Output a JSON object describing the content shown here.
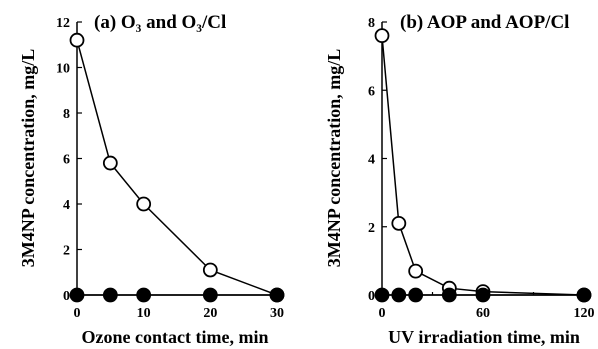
{
  "chart_data": [
    {
      "type": "line",
      "title": "(a) O₃ and O₃/Cl",
      "xlabel": "Ozone contact time, min",
      "ylabel": "3M4NP concentration, mg/L",
      "xlim": [
        0,
        30
      ],
      "ylim": [
        0,
        12
      ],
      "xticks": [
        0,
        10,
        20,
        30
      ],
      "yticks": [
        0,
        2,
        4,
        6,
        8,
        10,
        12
      ],
      "grid": false,
      "legend": "none",
      "series": [
        {
          "marker": "open-circle",
          "color": "#000000",
          "x": [
            0,
            5,
            10,
            20,
            30
          ],
          "y": [
            11.2,
            5.8,
            4.0,
            1.1,
            0.0
          ]
        },
        {
          "marker": "filled-circle",
          "color": "#000000",
          "x": [
            0,
            5,
            10,
            20,
            30
          ],
          "y": [
            0,
            0,
            0,
            0,
            0
          ]
        }
      ]
    },
    {
      "type": "line",
      "title": "(b) AOP and AOP/Cl",
      "xlabel": "UV irradiation time, min",
      "ylabel": "3M4NP concentration, mg/L",
      "xlim": [
        0,
        120
      ],
      "ylim": [
        0,
        8
      ],
      "xticks": [
        0,
        60,
        120
      ],
      "xticks_minor": [
        30,
        90
      ],
      "yticks": [
        0,
        2,
        4,
        6,
        8
      ],
      "grid": false,
      "legend": "none",
      "series": [
        {
          "marker": "open-circle",
          "color": "#000000",
          "x": [
            0,
            10,
            20,
            40,
            60,
            120
          ],
          "y": [
            7.6,
            2.1,
            0.7,
            0.2,
            0.1,
            0.0
          ]
        },
        {
          "marker": "filled-circle",
          "color": "#000000",
          "x": [
            0,
            10,
            20,
            40,
            60,
            120
          ],
          "y": [
            0,
            0,
            0,
            0,
            0,
            0
          ]
        }
      ]
    }
  ]
}
